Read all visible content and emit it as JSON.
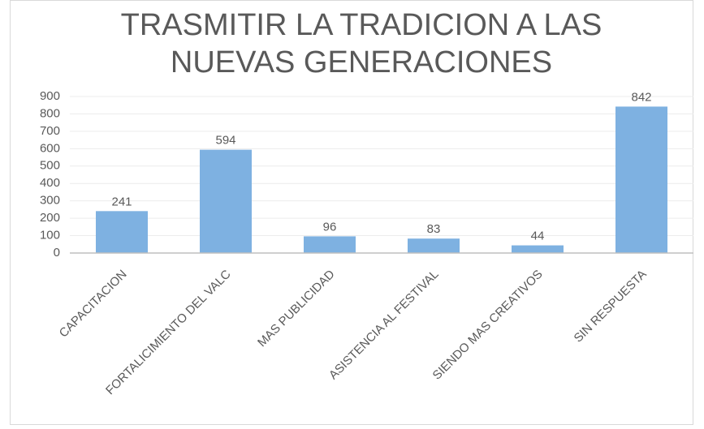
{
  "chart_data": {
    "type": "bar",
    "title": "TRASMITIR LA TRADICION A LAS NUEVAS GENERACIONES",
    "categories": [
      "CAPACITACION",
      "FORTALICIMIENTO DEL VALC",
      "MAS PUBLICIDAD",
      "ASISTENCIA AL FESTIVAL",
      "SIENDO MAS CREATIVOS",
      "SIN RESPUESTA"
    ],
    "values": [
      241,
      594,
      96,
      83,
      44,
      842
    ],
    "color": "#7eb1e1",
    "ylim": [
      0,
      900
    ],
    "yticks": [
      0,
      100,
      200,
      300,
      400,
      500,
      600,
      700,
      800,
      900
    ],
    "grid": true
  }
}
